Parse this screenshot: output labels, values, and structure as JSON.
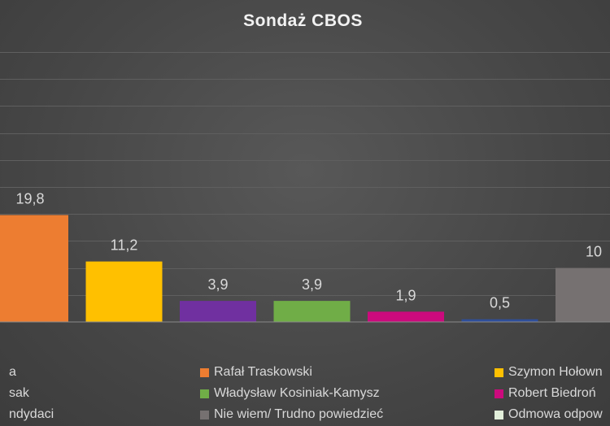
{
  "chart_data": {
    "type": "bar",
    "title": "Sondaż CBOS",
    "xlabel": "",
    "ylabel": "",
    "ylim": [
      0,
      50
    ],
    "grid": true,
    "legend_position": "bottom",
    "bars": [
      {
        "label": "Rafał Traskowski",
        "value": 19.8,
        "value_label": "19,8",
        "color": "#ed7d31"
      },
      {
        "label": "Szymon Hołownia",
        "value": 11.2,
        "value_label": "11,2",
        "color": "#ffc000"
      },
      {
        "label": "Władysław Kosiniak-Kamysz",
        "value": 3.9,
        "value_label": "3,9",
        "color": "#7030a0"
      },
      {
        "label": "Robert Biedroń",
        "value": 3.9,
        "value_label": "3,9",
        "color": "#70ad47"
      },
      {
        "label": "Krzysztof Bosak",
        "value": 1.9,
        "value_label": "1,9",
        "color": "#cc0a7d"
      },
      {
        "label": "Pozostali kandydaci",
        "value": 0.5,
        "value_label": "0,5",
        "color": "#2e4e9a"
      },
      {
        "label": "Nie wiem/ Trudno powiedzieć",
        "value": 10,
        "value_label": "10",
        "color": "#767171"
      }
    ],
    "legend": [
      {
        "label": "a",
        "color": "#4472c4"
      },
      {
        "label": "Rafał Traskowski",
        "color": "#ed7d31"
      },
      {
        "label": "Szymon Hołown",
        "color": "#ffc000"
      },
      {
        "label": "sak",
        "color": "#a5a5a5"
      },
      {
        "label": "Władysław Kosiniak-Kamysz",
        "color": "#70ad47"
      },
      {
        "label": "Robert Biedroń",
        "color": "#cc0a7d"
      },
      {
        "label": "ndydaci",
        "color": "#2e4e9a"
      },
      {
        "label": "Nie wiem/ Trudno powiedzieć",
        "color": "#767171"
      },
      {
        "label": "Odmowa odpow",
        "color": "#e2efda"
      }
    ]
  }
}
